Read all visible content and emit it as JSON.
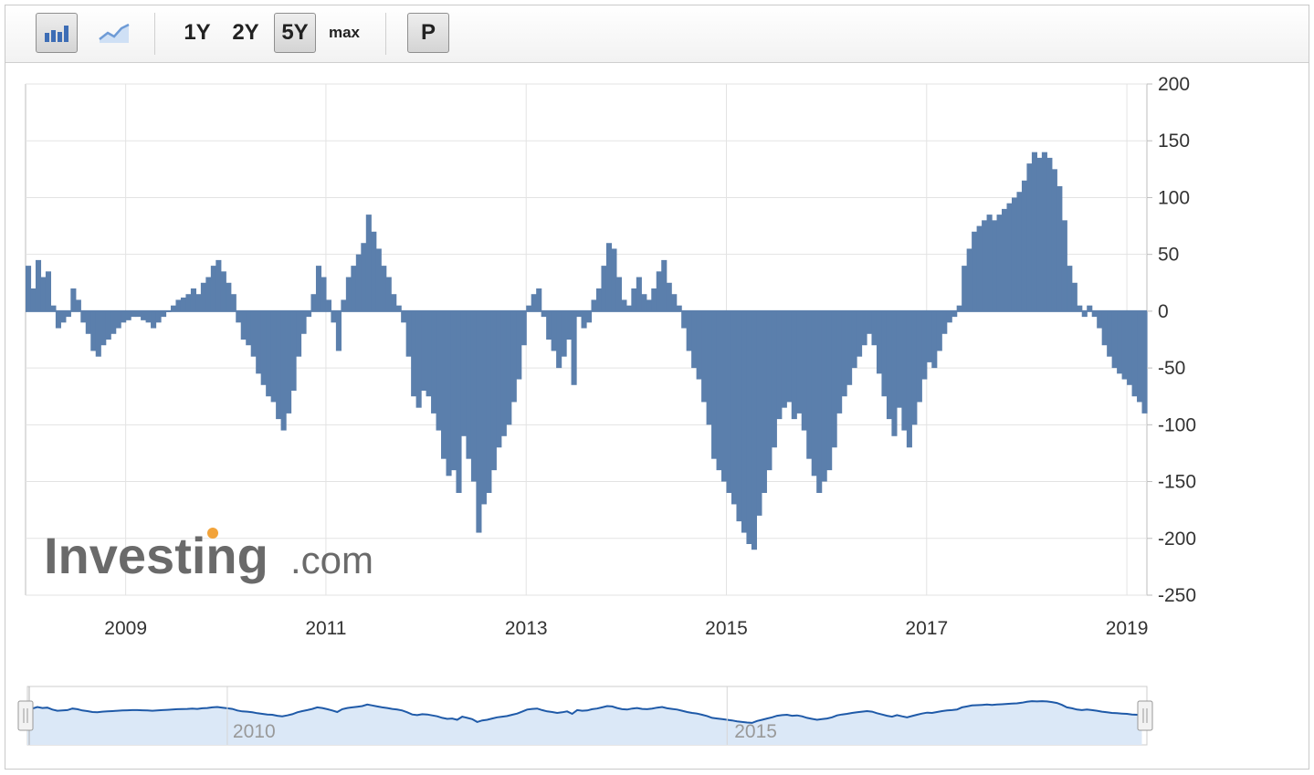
{
  "toolbar": {
    "bar_chart_icon": "bar-chart-icon",
    "line_chart_icon": "line-chart-icon",
    "ranges": [
      "1Y",
      "2Y",
      "5Y",
      "max"
    ],
    "active_range": "5Y",
    "p_label": "P"
  },
  "watermark": {
    "brand": "Investing",
    "suffix": ".com"
  },
  "navigator": {
    "labels": [
      "2010",
      "2015"
    ]
  },
  "colors": {
    "bar": "#5b7fac",
    "navigator_line": "#1f5aa8",
    "navigator_fill": "#dbe8f7",
    "grid": "#e3e3e3"
  },
  "chart_data": {
    "type": "bar",
    "x_ticks": [
      "2009",
      "2011",
      "2013",
      "2015",
      "2017",
      "2019"
    ],
    "y_ticks": [
      200,
      150,
      100,
      50,
      0,
      -50,
      -100,
      -150,
      -200,
      -250
    ],
    "ylim": [
      -250,
      200
    ],
    "xlim": [
      2008.0,
      2019.2
    ],
    "grid": true,
    "series": [
      {
        "points": [
          [
            2008.0,
            40
          ],
          [
            2008.05,
            20
          ],
          [
            2008.1,
            45
          ],
          [
            2008.15,
            30
          ],
          [
            2008.2,
            35
          ],
          [
            2008.25,
            5
          ],
          [
            2008.3,
            -15
          ],
          [
            2008.35,
            -10
          ],
          [
            2008.4,
            -5
          ],
          [
            2008.45,
            20
          ],
          [
            2008.5,
            10
          ],
          [
            2008.55,
            -10
          ],
          [
            2008.6,
            -20
          ],
          [
            2008.65,
            -35
          ],
          [
            2008.7,
            -40
          ],
          [
            2008.75,
            -30
          ],
          [
            2008.8,
            -25
          ],
          [
            2008.85,
            -20
          ],
          [
            2008.9,
            -15
          ],
          [
            2008.95,
            -10
          ],
          [
            2009.0,
            -8
          ],
          [
            2009.05,
            -5
          ],
          [
            2009.1,
            -5
          ],
          [
            2009.15,
            -8
          ],
          [
            2009.2,
            -10
          ],
          [
            2009.25,
            -15
          ],
          [
            2009.3,
            -10
          ],
          [
            2009.35,
            -5
          ],
          [
            2009.4,
            0
          ],
          [
            2009.45,
            5
          ],
          [
            2009.5,
            10
          ],
          [
            2009.55,
            12
          ],
          [
            2009.6,
            15
          ],
          [
            2009.65,
            20
          ],
          [
            2009.7,
            15
          ],
          [
            2009.75,
            25
          ],
          [
            2009.8,
            30
          ],
          [
            2009.85,
            40
          ],
          [
            2009.9,
            45
          ],
          [
            2009.95,
            35
          ],
          [
            2010.0,
            25
          ],
          [
            2010.05,
            15
          ],
          [
            2010.1,
            -10
          ],
          [
            2010.15,
            -25
          ],
          [
            2010.2,
            -30
          ],
          [
            2010.25,
            -40
          ],
          [
            2010.3,
            -55
          ],
          [
            2010.35,
            -65
          ],
          [
            2010.4,
            -75
          ],
          [
            2010.45,
            -80
          ],
          [
            2010.5,
            -95
          ],
          [
            2010.55,
            -105
          ],
          [
            2010.6,
            -90
          ],
          [
            2010.65,
            -70
          ],
          [
            2010.7,
            -40
          ],
          [
            2010.75,
            -20
          ],
          [
            2010.8,
            -5
          ],
          [
            2010.85,
            15
          ],
          [
            2010.9,
            40
          ],
          [
            2010.95,
            30
          ],
          [
            2011.0,
            10
          ],
          [
            2011.05,
            -10
          ],
          [
            2011.1,
            -35
          ],
          [
            2011.15,
            10
          ],
          [
            2011.2,
            30
          ],
          [
            2011.25,
            40
          ],
          [
            2011.3,
            50
          ],
          [
            2011.35,
            60
          ],
          [
            2011.4,
            85
          ],
          [
            2011.45,
            70
          ],
          [
            2011.5,
            55
          ],
          [
            2011.55,
            40
          ],
          [
            2011.6,
            30
          ],
          [
            2011.65,
            15
          ],
          [
            2011.7,
            5
          ],
          [
            2011.75,
            -10
          ],
          [
            2011.8,
            -40
          ],
          [
            2011.85,
            -75
          ],
          [
            2011.9,
            -85
          ],
          [
            2011.95,
            -70
          ],
          [
            2012.0,
            -75
          ],
          [
            2012.05,
            -90
          ],
          [
            2012.1,
            -105
          ],
          [
            2012.15,
            -130
          ],
          [
            2012.2,
            -145
          ],
          [
            2012.25,
            -140
          ],
          [
            2012.3,
            -160
          ],
          [
            2012.35,
            -110
          ],
          [
            2012.4,
            -130
          ],
          [
            2012.45,
            -150
          ],
          [
            2012.5,
            -195
          ],
          [
            2012.55,
            -170
          ],
          [
            2012.6,
            -160
          ],
          [
            2012.65,
            -140
          ],
          [
            2012.7,
            -120
          ],
          [
            2012.75,
            -110
          ],
          [
            2012.8,
            -100
          ],
          [
            2012.85,
            -80
          ],
          [
            2012.9,
            -60
          ],
          [
            2012.95,
            -30
          ],
          [
            2013.0,
            5
          ],
          [
            2013.05,
            15
          ],
          [
            2013.1,
            20
          ],
          [
            2013.15,
            -5
          ],
          [
            2013.2,
            -25
          ],
          [
            2013.25,
            -35
          ],
          [
            2013.3,
            -50
          ],
          [
            2013.35,
            -40
          ],
          [
            2013.4,
            -25
          ],
          [
            2013.45,
            -65
          ],
          [
            2013.5,
            -5
          ],
          [
            2013.55,
            -15
          ],
          [
            2013.6,
            -10
          ],
          [
            2013.65,
            10
          ],
          [
            2013.7,
            20
          ],
          [
            2013.75,
            40
          ],
          [
            2013.8,
            60
          ],
          [
            2013.85,
            55
          ],
          [
            2013.9,
            30
          ],
          [
            2013.95,
            10
          ],
          [
            2014.0,
            5
          ],
          [
            2014.05,
            20
          ],
          [
            2014.1,
            30
          ],
          [
            2014.15,
            15
          ],
          [
            2014.2,
            10
          ],
          [
            2014.25,
            20
          ],
          [
            2014.3,
            35
          ],
          [
            2014.35,
            45
          ],
          [
            2014.4,
            25
          ],
          [
            2014.45,
            15
          ],
          [
            2014.5,
            5
          ],
          [
            2014.55,
            -15
          ],
          [
            2014.6,
            -35
          ],
          [
            2014.65,
            -50
          ],
          [
            2014.7,
            -60
          ],
          [
            2014.75,
            -80
          ],
          [
            2014.8,
            -100
          ],
          [
            2014.85,
            -130
          ],
          [
            2014.9,
            -140
          ],
          [
            2014.95,
            -150
          ],
          [
            2015.0,
            -160
          ],
          [
            2015.05,
            -170
          ],
          [
            2015.1,
            -185
          ],
          [
            2015.15,
            -195
          ],
          [
            2015.2,
            -205
          ],
          [
            2015.25,
            -210
          ],
          [
            2015.3,
            -180
          ],
          [
            2015.35,
            -160
          ],
          [
            2015.4,
            -140
          ],
          [
            2015.45,
            -120
          ],
          [
            2015.5,
            -95
          ],
          [
            2015.55,
            -85
          ],
          [
            2015.6,
            -80
          ],
          [
            2015.65,
            -95
          ],
          [
            2015.7,
            -90
          ],
          [
            2015.75,
            -105
          ],
          [
            2015.8,
            -130
          ],
          [
            2015.85,
            -145
          ],
          [
            2015.9,
            -160
          ],
          [
            2015.95,
            -150
          ],
          [
            2016.0,
            -140
          ],
          [
            2016.05,
            -120
          ],
          [
            2016.1,
            -90
          ],
          [
            2016.15,
            -75
          ],
          [
            2016.2,
            -65
          ],
          [
            2016.25,
            -50
          ],
          [
            2016.3,
            -40
          ],
          [
            2016.35,
            -30
          ],
          [
            2016.4,
            -20
          ],
          [
            2016.45,
            -30
          ],
          [
            2016.5,
            -55
          ],
          [
            2016.55,
            -75
          ],
          [
            2016.6,
            -95
          ],
          [
            2016.65,
            -110
          ],
          [
            2016.7,
            -85
          ],
          [
            2016.75,
            -105
          ],
          [
            2016.8,
            -120
          ],
          [
            2016.85,
            -100
          ],
          [
            2016.9,
            -80
          ],
          [
            2016.95,
            -60
          ],
          [
            2017.0,
            -45
          ],
          [
            2017.05,
            -50
          ],
          [
            2017.1,
            -35
          ],
          [
            2017.15,
            -20
          ],
          [
            2017.2,
            -10
          ],
          [
            2017.25,
            -5
          ],
          [
            2017.3,
            5
          ],
          [
            2017.35,
            40
          ],
          [
            2017.4,
            55
          ],
          [
            2017.45,
            70
          ],
          [
            2017.5,
            75
          ],
          [
            2017.55,
            80
          ],
          [
            2017.6,
            85
          ],
          [
            2017.65,
            80
          ],
          [
            2017.7,
            85
          ],
          [
            2017.75,
            90
          ],
          [
            2017.8,
            95
          ],
          [
            2017.85,
            100
          ],
          [
            2017.9,
            105
          ],
          [
            2017.95,
            115
          ],
          [
            2018.0,
            130
          ],
          [
            2018.05,
            140
          ],
          [
            2018.1,
            135
          ],
          [
            2018.15,
            140
          ],
          [
            2018.2,
            135
          ],
          [
            2018.25,
            125
          ],
          [
            2018.3,
            110
          ],
          [
            2018.35,
            80
          ],
          [
            2018.4,
            40
          ],
          [
            2018.45,
            25
          ],
          [
            2018.5,
            5
          ],
          [
            2018.55,
            -5
          ],
          [
            2018.6,
            5
          ],
          [
            2018.65,
            -5
          ],
          [
            2018.7,
            -15
          ],
          [
            2018.75,
            -30
          ],
          [
            2018.8,
            -40
          ],
          [
            2018.85,
            -50
          ],
          [
            2018.9,
            -55
          ],
          [
            2018.95,
            -60
          ],
          [
            2019.0,
            -65
          ],
          [
            2019.05,
            -75
          ],
          [
            2019.1,
            -80
          ],
          [
            2019.15,
            -90
          ]
        ]
      }
    ]
  }
}
